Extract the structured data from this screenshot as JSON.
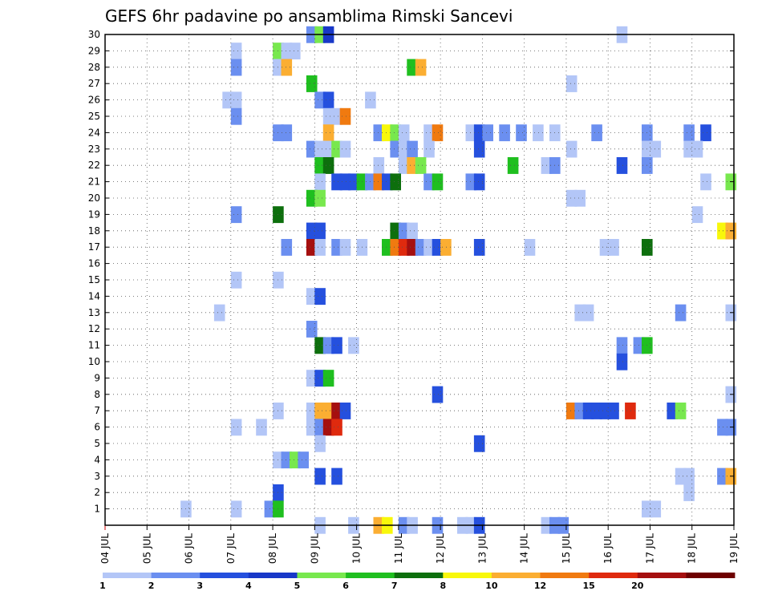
{
  "chart_data": {
    "type": "heatmap",
    "title": "GEFS 6hr padavine po ansamblima Rimski Sancevi",
    "xlabel": "",
    "ylabel": "",
    "x_tick_labels": [
      "04 JUL",
      "05 JUL",
      "06 JUL",
      "07 JUL",
      "08 JUL",
      "09 JUL",
      "10 JUL",
      "11 JUL",
      "12 JUL",
      "13 JUL",
      "14 JUL",
      "15 JUL",
      "16 JUL",
      "17 JUL",
      "18 JUL",
      "19 JUL"
    ],
    "xlim_days": [
      0,
      15
    ],
    "y_tick_labels": [
      "1",
      "2",
      "3",
      "4",
      "5",
      "6",
      "7",
      "8",
      "9",
      "10",
      "11",
      "12",
      "13",
      "14",
      "15",
      "16",
      "17",
      "18",
      "19",
      "20",
      "21",
      "22",
      "23",
      "24",
      "25",
      "26",
      "27",
      "28",
      "29",
      "30"
    ],
    "ylim": [
      0,
      30
    ],
    "grid": true,
    "legend_position": "bottom",
    "legend": {
      "labels": [
        "1",
        "2",
        "3",
        "4",
        "5",
        "6",
        "7",
        "8",
        "10",
        "12",
        "15",
        "20"
      ],
      "colors": [
        "#b3c6f7",
        "#6b8ff0",
        "#2550de",
        "#1838c8",
        "#78e84e",
        "#1fbf1f",
        "#0d6f0d",
        "#f8f80b",
        "#fbae32",
        "#f07a10",
        "#df2a0e",
        "#a50f0f",
        "#6e0000"
      ]
    },
    "cells": [
      [
        8.8,
        30,
        1
      ],
      [
        9.0,
        30,
        4
      ],
      [
        9.2,
        30,
        3
      ],
      [
        16.2,
        30,
        0
      ],
      [
        7.0,
        29,
        0
      ],
      [
        8.0,
        29,
        4
      ],
      [
        8.2,
        29,
        0
      ],
      [
        8.4,
        29,
        0
      ],
      [
        7.0,
        28,
        1
      ],
      [
        8.0,
        28,
        0
      ],
      [
        8.2,
        28,
        8
      ],
      [
        11.2,
        28,
        5
      ],
      [
        11.4,
        28,
        8
      ],
      [
        8.8,
        27,
        5
      ],
      [
        15.0,
        27,
        0
      ],
      [
        6.8,
        26,
        0
      ],
      [
        7.0,
        26,
        0
      ],
      [
        9.0,
        26,
        1
      ],
      [
        9.2,
        26,
        2
      ],
      [
        10.2,
        26,
        0
      ],
      [
        7.0,
        25,
        1
      ],
      [
        9.2,
        25,
        0
      ],
      [
        9.4,
        25,
        0
      ],
      [
        9.6,
        25,
        9
      ],
      [
        8.0,
        24,
        1
      ],
      [
        8.2,
        24,
        1
      ],
      [
        9.2,
        24,
        8
      ],
      [
        10.4,
        24,
        1
      ],
      [
        10.6,
        24,
        7
      ],
      [
        10.8,
        24,
        4
      ],
      [
        11.0,
        24,
        0
      ],
      [
        11.6,
        24,
        0
      ],
      [
        11.8,
        24,
        9
      ],
      [
        12.6,
        24,
        0
      ],
      [
        12.8,
        24,
        2
      ],
      [
        13.0,
        24,
        1
      ],
      [
        13.4,
        24,
        1
      ],
      [
        13.8,
        24,
        1
      ],
      [
        14.2,
        24,
        0
      ],
      [
        14.6,
        24,
        0
      ],
      [
        15.6,
        24,
        1
      ],
      [
        16.8,
        24,
        1
      ],
      [
        17.8,
        24,
        1
      ],
      [
        18.2,
        24,
        2
      ],
      [
        8.8,
        23,
        1
      ],
      [
        9.0,
        23,
        0
      ],
      [
        9.2,
        23,
        0
      ],
      [
        9.4,
        23,
        4
      ],
      [
        9.6,
        23,
        0
      ],
      [
        10.8,
        23,
        1
      ],
      [
        11.0,
        23,
        0
      ],
      [
        11.2,
        23,
        1
      ],
      [
        11.6,
        23,
        0
      ],
      [
        12.8,
        23,
        2
      ],
      [
        15.0,
        23,
        0
      ],
      [
        16.8,
        23,
        0
      ],
      [
        17.0,
        23,
        0
      ],
      [
        17.8,
        23,
        0
      ],
      [
        18.0,
        23,
        0
      ],
      [
        9.0,
        22,
        5
      ],
      [
        9.2,
        22,
        6
      ],
      [
        10.4,
        22,
        0
      ],
      [
        11.0,
        22,
        0
      ],
      [
        11.2,
        22,
        8
      ],
      [
        11.4,
        22,
        4
      ],
      [
        13.6,
        22,
        5
      ],
      [
        14.4,
        22,
        0
      ],
      [
        14.6,
        22,
        1
      ],
      [
        16.2,
        22,
        2
      ],
      [
        16.8,
        22,
        1
      ],
      [
        9.0,
        21,
        0
      ],
      [
        9.4,
        21,
        2
      ],
      [
        9.6,
        21,
        2
      ],
      [
        9.8,
        21,
        2
      ],
      [
        10.0,
        21,
        5
      ],
      [
        10.2,
        21,
        1
      ],
      [
        10.4,
        21,
        9
      ],
      [
        10.6,
        21,
        2
      ],
      [
        10.8,
        21,
        6
      ],
      [
        11.6,
        21,
        1
      ],
      [
        11.8,
        21,
        5
      ],
      [
        12.6,
        21,
        1
      ],
      [
        12.8,
        21,
        2
      ],
      [
        18.2,
        21,
        0
      ],
      [
        18.8,
        21,
        4
      ],
      [
        8.8,
        20,
        5
      ],
      [
        9.0,
        20,
        4
      ],
      [
        15.0,
        20,
        0
      ],
      [
        15.2,
        20,
        0
      ],
      [
        7.0,
        19,
        1
      ],
      [
        8.0,
        19,
        6
      ],
      [
        18.0,
        19,
        0
      ],
      [
        8.8,
        18,
        2
      ],
      [
        9.0,
        18,
        2
      ],
      [
        10.8,
        18,
        6
      ],
      [
        11.0,
        18,
        1
      ],
      [
        11.2,
        18,
        0
      ],
      [
        18.6,
        18,
        7
      ],
      [
        18.8,
        18,
        8
      ],
      [
        8.2,
        17,
        1
      ],
      [
        8.8,
        17,
        11
      ],
      [
        9.0,
        17,
        0
      ],
      [
        9.4,
        17,
        1
      ],
      [
        9.6,
        17,
        0
      ],
      [
        10.0,
        17,
        0
      ],
      [
        10.6,
        17,
        5
      ],
      [
        10.8,
        17,
        9
      ],
      [
        11.0,
        17,
        10
      ],
      [
        11.2,
        17,
        11
      ],
      [
        11.4,
        17,
        1
      ],
      [
        11.6,
        17,
        0
      ],
      [
        11.8,
        17,
        2
      ],
      [
        12.0,
        17,
        8
      ],
      [
        12.8,
        17,
        2
      ],
      [
        14.0,
        17,
        0
      ],
      [
        15.8,
        17,
        0
      ],
      [
        16.0,
        17,
        0
      ],
      [
        16.8,
        17,
        6
      ],
      [
        7.0,
        15,
        0
      ],
      [
        8.0,
        15,
        0
      ],
      [
        8.8,
        14,
        0
      ],
      [
        9.0,
        14,
        2
      ],
      [
        6.6,
        13,
        0
      ],
      [
        15.2,
        13,
        0
      ],
      [
        15.4,
        13,
        0
      ],
      [
        17.6,
        13,
        1
      ],
      [
        18.8,
        13,
        0
      ],
      [
        8.8,
        12,
        1
      ],
      [
        9.0,
        11,
        6
      ],
      [
        9.2,
        11,
        1
      ],
      [
        9.4,
        11,
        2
      ],
      [
        9.8,
        11,
        0
      ],
      [
        16.2,
        11,
        1
      ],
      [
        16.6,
        11,
        1
      ],
      [
        16.8,
        11,
        5
      ],
      [
        16.2,
        10,
        2
      ],
      [
        8.8,
        9,
        0
      ],
      [
        9.0,
        9,
        2
      ],
      [
        9.2,
        9,
        5
      ],
      [
        11.8,
        8,
        2
      ],
      [
        18.8,
        8,
        0
      ],
      [
        8.0,
        7,
        0
      ],
      [
        8.8,
        7,
        0
      ],
      [
        9.0,
        7,
        8
      ],
      [
        9.2,
        7,
        8
      ],
      [
        9.4,
        7,
        11
      ],
      [
        9.6,
        7,
        2
      ],
      [
        15.0,
        7,
        9
      ],
      [
        15.2,
        7,
        1
      ],
      [
        15.4,
        7,
        2
      ],
      [
        15.6,
        7,
        2
      ],
      [
        15.8,
        7,
        2
      ],
      [
        16.0,
        7,
        2
      ],
      [
        16.4,
        7,
        10
      ],
      [
        17.4,
        7,
        2
      ],
      [
        17.6,
        7,
        4
      ],
      [
        7.0,
        6,
        0
      ],
      [
        7.6,
        6,
        0
      ],
      [
        8.8,
        6,
        0
      ],
      [
        9.0,
        6,
        1
      ],
      [
        9.2,
        6,
        11
      ],
      [
        9.4,
        6,
        10
      ],
      [
        18.6,
        6,
        1
      ],
      [
        18.8,
        6,
        1
      ],
      [
        9.0,
        5,
        0
      ],
      [
        12.8,
        5,
        2
      ],
      [
        8.0,
        4,
        0
      ],
      [
        8.2,
        4,
        1
      ],
      [
        8.4,
        4,
        4
      ],
      [
        8.6,
        4,
        1
      ],
      [
        9.0,
        3,
        2
      ],
      [
        9.4,
        3,
        2
      ],
      [
        17.6,
        3,
        0
      ],
      [
        17.8,
        3,
        0
      ],
      [
        18.6,
        3,
        1
      ],
      [
        18.8,
        3,
        8
      ],
      [
        8.0,
        2,
        2
      ],
      [
        17.8,
        2,
        0
      ],
      [
        5.8,
        1,
        0
      ],
      [
        7.0,
        1,
        0
      ],
      [
        7.8,
        1,
        1
      ],
      [
        8.0,
        1,
        5
      ],
      [
        16.8,
        1,
        0
      ],
      [
        17.0,
        1,
        0
      ],
      [
        9.0,
        0,
        0
      ],
      [
        9.8,
        0,
        0
      ],
      [
        10.4,
        0,
        8
      ],
      [
        10.6,
        0,
        7
      ],
      [
        11.0,
        0,
        1
      ],
      [
        11.2,
        0,
        0
      ],
      [
        11.8,
        0,
        1
      ],
      [
        12.4,
        0,
        0
      ],
      [
        12.6,
        0,
        0
      ],
      [
        12.8,
        0,
        2
      ],
      [
        14.4,
        0,
        0
      ],
      [
        14.6,
        0,
        1
      ],
      [
        14.8,
        0,
        1
      ]
    ]
  }
}
